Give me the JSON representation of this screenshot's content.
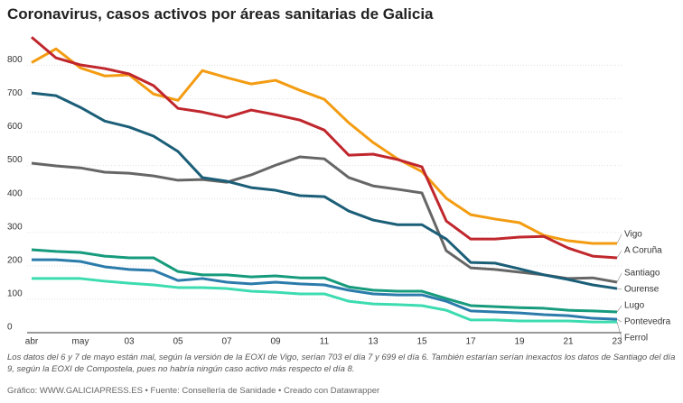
{
  "chart_data": {
    "type": "line",
    "title": "Coronavirus, casos activos por áreas sanitarias de Galicia",
    "note": "Los datos del 6 y 7 de mayo están mal, según la versión de la EOXI de Vigo, serían 703 el día 7 y 699 el día 6. También estarían serían inexactos los datos de Santiago del día 9, según la EOXI de Compostela, pues no habría ningún caso activo más respecto el día 8.",
    "source": "Gráfico: WWW.GALICIAPRESS.ES • Fuente: Consellería de Sanidade • Creado con Datawrapper",
    "categories": [
      "abr",
      null,
      "may",
      null,
      "03",
      null,
      "05",
      null,
      "07",
      null,
      "09",
      null,
      "11",
      null,
      "13",
      null,
      "15",
      null,
      "17",
      null,
      "19",
      null,
      "21",
      null,
      "23"
    ],
    "ylim": [
      0,
      890
    ],
    "yticks": [
      0,
      100,
      200,
      300,
      400,
      500,
      600,
      700,
      800
    ],
    "grid": true,
    "series": [
      {
        "name": "Vigo",
        "color": "#f39c12",
        "values": [
          808,
          849,
          792,
          768,
          771,
          714,
          695,
          784,
          763,
          744,
          755,
          725,
          698,
          628,
          569,
          520,
          482,
          402,
          353,
          340,
          329,
          291,
          275,
          267,
          267
        ]
      },
      {
        "name": "A Coruña",
        "color": "#c0272d",
        "values": [
          884,
          822,
          801,
          790,
          774,
          739,
          671,
          660,
          644,
          666,
          652,
          636,
          606,
          531,
          534,
          518,
          496,
          334,
          280,
          280,
          286,
          288,
          253,
          229,
          224
        ]
      },
      {
        "name": "Santiago",
        "color": "#666666",
        "values": [
          507,
          499,
          493,
          480,
          477,
          469,
          456,
          458,
          450,
          472,
          501,
          526,
          520,
          464,
          439,
          429,
          418,
          245,
          194,
          189,
          181,
          173,
          162,
          164,
          151
        ]
      },
      {
        "name": "Ourense",
        "color": "#1b5e78",
        "values": [
          717,
          709,
          674,
          633,
          615,
          588,
          542,
          464,
          453,
          434,
          426,
          410,
          407,
          364,
          337,
          323,
          323,
          280,
          210,
          208,
          191,
          173,
          159,
          143,
          132
        ]
      },
      {
        "name": "Lugo",
        "color": "#169b7c",
        "values": [
          248,
          243,
          240,
          229,
          224,
          224,
          183,
          173,
          173,
          167,
          170,
          164,
          164,
          137,
          127,
          124,
          124,
          102,
          81,
          78,
          75,
          73,
          67,
          65,
          62
        ]
      },
      {
        "name": "Pontevedra",
        "color": "#2b7bab",
        "values": [
          218,
          218,
          213,
          197,
          189,
          186,
          156,
          162,
          151,
          146,
          151,
          146,
          143,
          127,
          116,
          113,
          113,
          94,
          65,
          62,
          59,
          54,
          51,
          43,
          40
        ]
      },
      {
        "name": "Ferrol",
        "color": "#3ddcb0",
        "values": [
          162,
          162,
          162,
          154,
          148,
          143,
          135,
          135,
          132,
          124,
          121,
          116,
          116,
          94,
          86,
          84,
          81,
          67,
          38,
          38,
          35,
          35,
          35,
          32,
          32
        ]
      }
    ]
  }
}
